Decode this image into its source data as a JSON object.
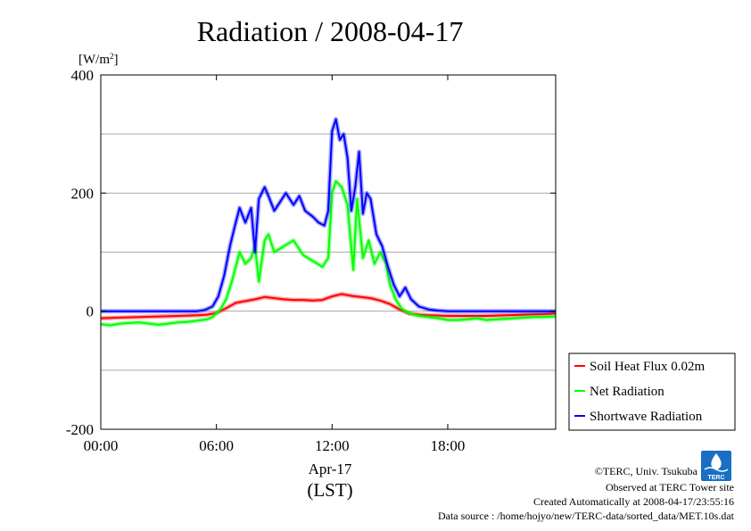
{
  "chart_data": {
    "type": "line",
    "title": "Radiation / 2008-04-17",
    "ylabel": "[W/m",
    "ylabel_sup": "2",
    "ylabel_close": "]",
    "xlabel_date": "Apr-17",
    "xlabel": "(LST)",
    "ylim": [
      -200,
      400
    ],
    "xlim": [
      0,
      23.6
    ],
    "y_ticks": [
      -200,
      0,
      200,
      400
    ],
    "y_grid": [
      -100,
      100,
      300
    ],
    "y_tick_labels": [
      "-200",
      "0",
      "200",
      "400"
    ],
    "x_ticks": [
      0,
      6,
      12,
      18
    ],
    "x_tick_labels": [
      "00:00",
      "06:00",
      "12:00",
      "18:00"
    ],
    "legend_position": "bottom-right, outside plot",
    "series": [
      {
        "name": "Soil Heat Flux 0.02m",
        "color": "#ff0000",
        "points": [
          [
            0,
            -12
          ],
          [
            1,
            -11
          ],
          [
            2,
            -10
          ],
          [
            3,
            -9
          ],
          [
            4,
            -8
          ],
          [
            5,
            -7
          ],
          [
            5.5,
            -6
          ],
          [
            6,
            -3
          ],
          [
            6.5,
            5
          ],
          [
            7,
            14
          ],
          [
            7.5,
            17
          ],
          [
            8,
            20
          ],
          [
            8.5,
            24
          ],
          [
            9,
            22
          ],
          [
            9.5,
            20
          ],
          [
            10,
            19
          ],
          [
            10.5,
            19
          ],
          [
            11,
            18
          ],
          [
            11.5,
            19
          ],
          [
            12,
            25
          ],
          [
            12.5,
            29
          ],
          [
            13,
            26
          ],
          [
            13.5,
            24
          ],
          [
            14,
            22
          ],
          [
            14.5,
            18
          ],
          [
            15,
            12
          ],
          [
            15.5,
            3
          ],
          [
            16,
            -4
          ],
          [
            16.5,
            -6
          ],
          [
            17,
            -7
          ],
          [
            18,
            -8
          ],
          [
            19,
            -8
          ],
          [
            20,
            -8
          ],
          [
            21,
            -7
          ],
          [
            22,
            -6
          ],
          [
            23,
            -5
          ],
          [
            23.6,
            -4
          ]
        ]
      },
      {
        "name": "Net Radiation",
        "color": "#00ff00",
        "points": [
          [
            0,
            -22
          ],
          [
            0.5,
            -24
          ],
          [
            1,
            -21
          ],
          [
            1.5,
            -20
          ],
          [
            2,
            -19
          ],
          [
            2.5,
            -21
          ],
          [
            3,
            -23
          ],
          [
            3.5,
            -21
          ],
          [
            4,
            -19
          ],
          [
            4.5,
            -18
          ],
          [
            5,
            -16
          ],
          [
            5.5,
            -14
          ],
          [
            5.8,
            -10
          ],
          [
            6.2,
            3
          ],
          [
            6.5,
            20
          ],
          [
            6.8,
            50
          ],
          [
            7,
            75
          ],
          [
            7.2,
            100
          ],
          [
            7.5,
            80
          ],
          [
            7.8,
            90
          ],
          [
            8,
            110
          ],
          [
            8.2,
            50
          ],
          [
            8.5,
            120
          ],
          [
            8.7,
            130
          ],
          [
            9,
            100
          ],
          [
            9.5,
            110
          ],
          [
            10,
            120
          ],
          [
            10.5,
            95
          ],
          [
            11,
            85
          ],
          [
            11.5,
            75
          ],
          [
            11.8,
            90
          ],
          [
            12,
            200
          ],
          [
            12.2,
            220
          ],
          [
            12.5,
            210
          ],
          [
            12.8,
            180
          ],
          [
            13.1,
            70
          ],
          [
            13.3,
            190
          ],
          [
            13.6,
            90
          ],
          [
            13.9,
            120
          ],
          [
            14.2,
            80
          ],
          [
            14.5,
            100
          ],
          [
            14.8,
            80
          ],
          [
            15,
            45
          ],
          [
            15.3,
            20
          ],
          [
            15.6,
            5
          ],
          [
            15.9,
            -2
          ],
          [
            16.2,
            -5
          ],
          [
            16.5,
            -8
          ],
          [
            17,
            -10
          ],
          [
            17.5,
            -12
          ],
          [
            18,
            -15
          ],
          [
            18.5,
            -15
          ],
          [
            19,
            -14
          ],
          [
            19.5,
            -12
          ],
          [
            20,
            -15
          ],
          [
            20.5,
            -14
          ],
          [
            21,
            -13
          ],
          [
            21.5,
            -12
          ],
          [
            22,
            -11
          ],
          [
            22.5,
            -10
          ],
          [
            23,
            -10
          ],
          [
            23.6,
            -9
          ]
        ]
      },
      {
        "name": "Shortwave Radiation",
        "color": "#0000ff",
        "points": [
          [
            0,
            0
          ],
          [
            1,
            0
          ],
          [
            2,
            0
          ],
          [
            3,
            0
          ],
          [
            4,
            0
          ],
          [
            5,
            0
          ],
          [
            5.4,
            2
          ],
          [
            5.8,
            8
          ],
          [
            6.1,
            25
          ],
          [
            6.4,
            60
          ],
          [
            6.7,
            110
          ],
          [
            7,
            150
          ],
          [
            7.2,
            175
          ],
          [
            7.5,
            150
          ],
          [
            7.8,
            175
          ],
          [
            8,
            100
          ],
          [
            8.2,
            190
          ],
          [
            8.5,
            210
          ],
          [
            8.7,
            195
          ],
          [
            9,
            170
          ],
          [
            9.3,
            185
          ],
          [
            9.6,
            200
          ],
          [
            10,
            180
          ],
          [
            10.3,
            195
          ],
          [
            10.6,
            170
          ],
          [
            11,
            160
          ],
          [
            11.3,
            150
          ],
          [
            11.6,
            145
          ],
          [
            11.8,
            170
          ],
          [
            12,
            305
          ],
          [
            12.2,
            325
          ],
          [
            12.4,
            290
          ],
          [
            12.6,
            300
          ],
          [
            12.8,
            260
          ],
          [
            13,
            170
          ],
          [
            13.2,
            210
          ],
          [
            13.4,
            270
          ],
          [
            13.6,
            165
          ],
          [
            13.8,
            200
          ],
          [
            14,
            190
          ],
          [
            14.3,
            130
          ],
          [
            14.6,
            110
          ],
          [
            14.9,
            75
          ],
          [
            15.2,
            45
          ],
          [
            15.5,
            25
          ],
          [
            15.8,
            40
          ],
          [
            16.1,
            20
          ],
          [
            16.5,
            8
          ],
          [
            17,
            3
          ],
          [
            17.5,
            1
          ],
          [
            18,
            0
          ],
          [
            19,
            0
          ],
          [
            20,
            0
          ],
          [
            21,
            0
          ],
          [
            22,
            0
          ],
          [
            23,
            0
          ],
          [
            23.6,
            0
          ]
        ]
      }
    ]
  },
  "credits": {
    "copyright": "©TERC, Univ. Tsukuba",
    "observed": "Observed at TERC Tower site",
    "created": "Created Automatically at 2008-04-17/23:55:16",
    "source": "Data source : /home/hojyo/new/TERC-data/sorted_data/MET.10s.dat",
    "logo_text": "TERC"
  }
}
